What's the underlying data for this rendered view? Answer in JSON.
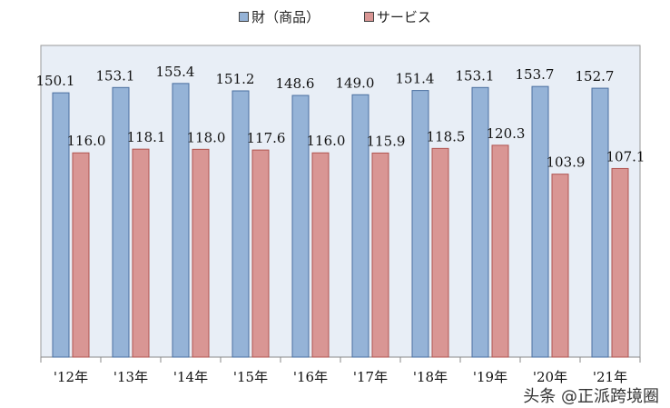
{
  "chart_data": {
    "type": "bar",
    "categories": [
      "'12年",
      "'13年",
      "'14年",
      "'15年",
      "'16年",
      "'17年",
      "'18年",
      "'19年",
      "'20年",
      "'21年"
    ],
    "series": [
      {
        "name": "財（商品）",
        "color": "#95b3d7",
        "values": [
          150.1,
          153.1,
          155.4,
          151.2,
          148.6,
          149.0,
          151.4,
          153.1,
          153.7,
          152.7
        ]
      },
      {
        "name": "サービス",
        "color": "#d99694",
        "values": [
          116.0,
          118.1,
          118.0,
          117.6,
          116.0,
          115.9,
          118.5,
          120.3,
          103.9,
          107.1
        ]
      }
    ],
    "ylim": [
      0,
      177
    ],
    "grid": false,
    "legend": "top",
    "plot_background": "#e8eef6",
    "data_labels": true
  },
  "watermark": "头条 @正派跨境圈"
}
